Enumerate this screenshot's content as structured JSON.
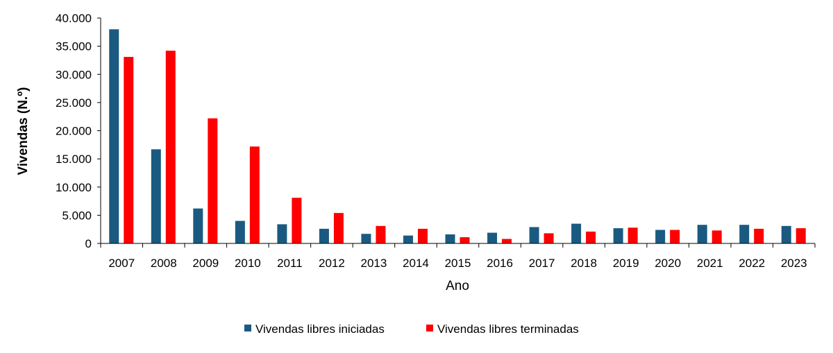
{
  "chart_data": {
    "type": "bar",
    "xlabel": "Ano",
    "ylabel": "Vivendas (N.º)",
    "ylim": [
      0,
      40000
    ],
    "yticks": [
      "0",
      "5.000",
      "10.000",
      "15.000",
      "20.000",
      "25.000",
      "30.000",
      "35.000",
      "40.000"
    ],
    "categories": [
      "2007",
      "2008",
      "2009",
      "2010",
      "2011",
      "2012",
      "2013",
      "2014",
      "2015",
      "2016",
      "2017",
      "2018",
      "2019",
      "2020",
      "2021",
      "2022",
      "2023"
    ],
    "series": [
      {
        "name": "Vivendas libres iniciadas",
        "color": "#1a5a80",
        "values": [
          38000,
          16700,
          6200,
          4000,
          3400,
          2600,
          1700,
          1400,
          1600,
          1900,
          2900,
          3500,
          2700,
          2400,
          3300,
          3300,
          3100
        ]
      },
      {
        "name": "Vivendas libres terminadas",
        "color": "#ff0000",
        "values": [
          33100,
          34200,
          22200,
          17200,
          8100,
          5400,
          3100,
          2600,
          1100,
          800,
          1800,
          2100,
          2800,
          2400,
          2300,
          2600,
          2700
        ]
      }
    ],
    "grid": false,
    "legend_position": "bottom"
  }
}
